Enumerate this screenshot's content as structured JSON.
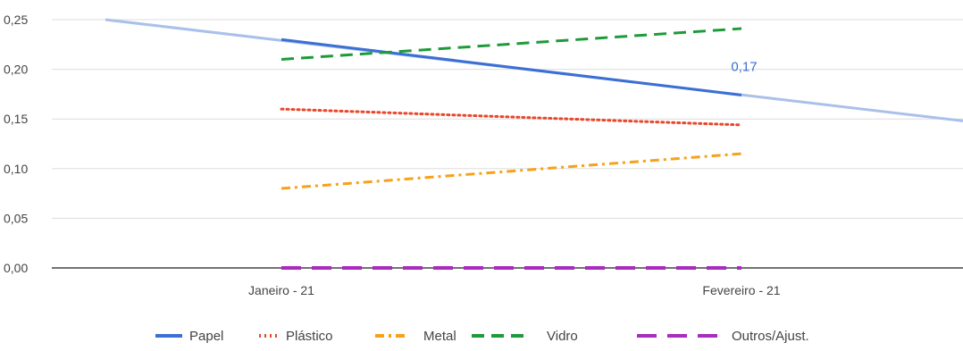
{
  "chart_data": {
    "type": "line",
    "categories": [
      "Janeiro - 21",
      "Fevereiro - 21"
    ],
    "ylim": [
      0,
      0.25
    ],
    "y_ticks": [
      "0,00",
      "0,05",
      "0,10",
      "0,15",
      "0,20",
      "0,25"
    ],
    "grid": true,
    "legend_position": "bottom",
    "series": [
      {
        "name": "Papel",
        "values": [
          0.23,
          0.174
        ],
        "color": "#3b6fd4",
        "dash": "solid"
      },
      {
        "name": "Plástico",
        "values": [
          0.16,
          0.144
        ],
        "color": "#e8472b",
        "dash": "dotted"
      },
      {
        "name": "Metal",
        "values": [
          0.08,
          0.115
        ],
        "color": "#f7a11a",
        "dash": "dashdot"
      },
      {
        "name": "Vidro",
        "values": [
          0.21,
          0.241
        ],
        "color": "#1f9a3a",
        "dash": "dashed"
      },
      {
        "name": "Outros/Ajust.",
        "values": [
          0.0,
          0.0
        ],
        "color": "#a92bc0",
        "dash": "longdash"
      }
    ],
    "trendline": {
      "series": "Papel",
      "color": "#a9c1ea",
      "start": 0.25,
      "end": 0.148
    },
    "data_labels": [
      {
        "series": "Papel",
        "category": "Fevereiro - 21",
        "text": "0,17"
      }
    ]
  }
}
